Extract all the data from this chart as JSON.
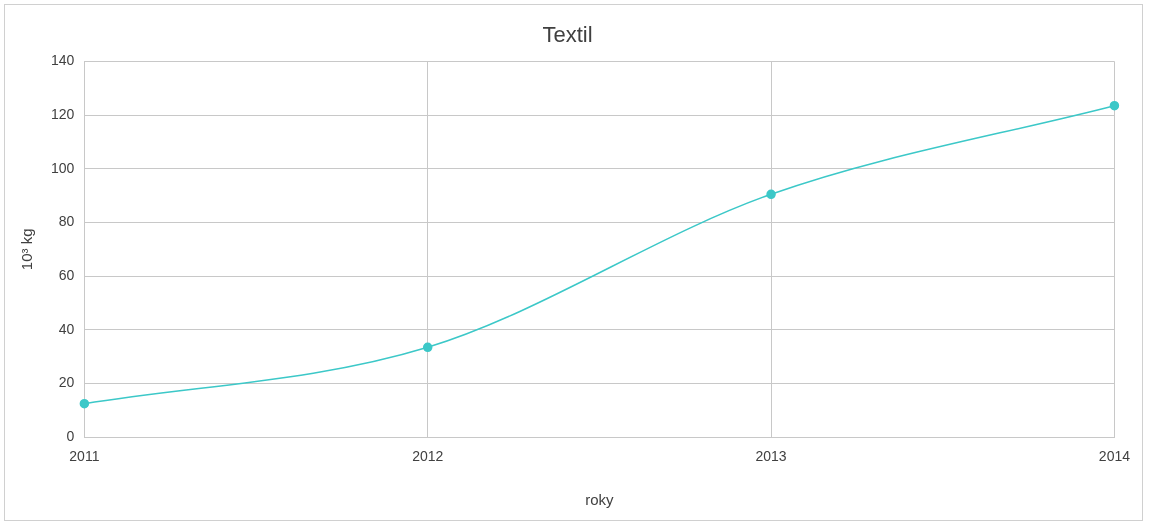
{
  "chart_data": {
    "type": "line",
    "title": "Textil",
    "xlabel": "roky",
    "ylabel": "10³ kg",
    "categories": [
      "2011",
      "2012",
      "2013",
      "2014"
    ],
    "series": [
      {
        "color": "#3cc8c8",
        "values": [
          12.5,
          33.5,
          90.5,
          123.5
        ]
      }
    ],
    "ylim": [
      0,
      140
    ],
    "yticks": [
      0,
      20,
      40,
      60,
      80,
      100,
      120,
      140
    ],
    "grid": true,
    "legend": false,
    "marker": "circle",
    "line_style": "solid"
  }
}
